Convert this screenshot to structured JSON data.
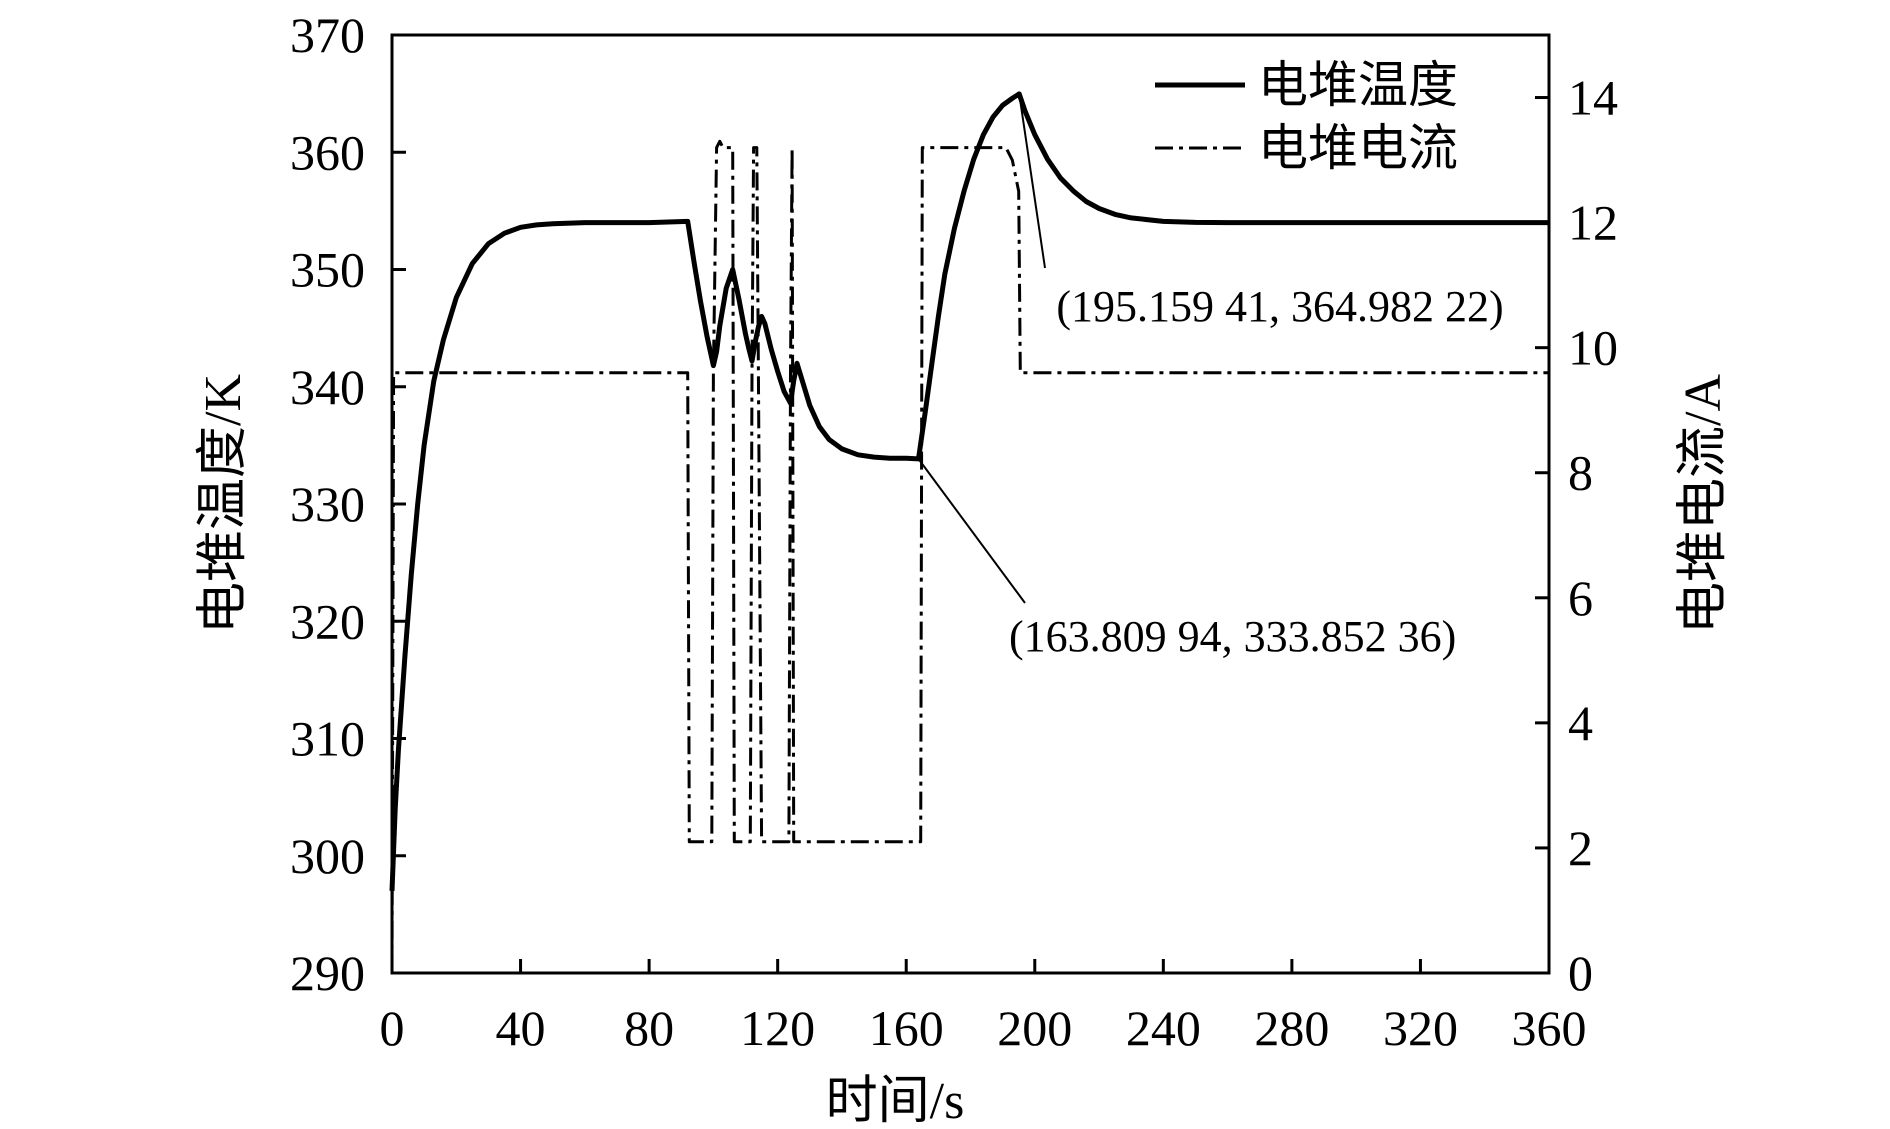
{
  "chart_data": {
    "type": "line",
    "title": "",
    "xlabel": "时间/s",
    "ylabel": "电堆温度/K",
    "y2label": "电堆电流/A",
    "xlim": [
      0,
      360
    ],
    "ylim": [
      290,
      370
    ],
    "y2lim": [
      0,
      15
    ],
    "xticks": [
      0,
      40,
      80,
      120,
      160,
      200,
      240,
      280,
      320,
      360
    ],
    "yticks": [
      290,
      300,
      310,
      320,
      330,
      340,
      350,
      360,
      370
    ],
    "y2ticks": [
      0,
      2,
      4,
      6,
      8,
      10,
      12,
      14
    ],
    "grid": false,
    "legend_position": "top-right",
    "series": [
      {
        "name": "电堆温度",
        "axis": "left",
        "style": "solid",
        "color": "#000000",
        "x": [
          0,
          1,
          2,
          4,
          6,
          8,
          10,
          13,
          16,
          20,
          25,
          30,
          35,
          40,
          45,
          50,
          60,
          70,
          80,
          92,
          94,
          96,
          98,
          100,
          101,
          102,
          104,
          106,
          108,
          110,
          111,
          112,
          113,
          114,
          115,
          116,
          118,
          120,
          122,
          124,
          125,
          126,
          128,
          130,
          133,
          136,
          140,
          145,
          150,
          155,
          160,
          163.81,
          166,
          168,
          170,
          172,
          175,
          178,
          181,
          184,
          187,
          190,
          193,
          195.16,
          197,
          200,
          204,
          208,
          212,
          216,
          220,
          225,
          230,
          240,
          250,
          260,
          280,
          300,
          320,
          340,
          360
        ],
        "y": [
          297,
          304,
          309,
          317,
          324,
          330,
          335,
          340.5,
          344,
          347.6,
          350.5,
          352.2,
          353.1,
          353.6,
          353.8,
          353.9,
          354,
          354,
          354,
          354.1,
          350.6,
          347.3,
          344.3,
          341.8,
          343,
          345.2,
          348.4,
          350,
          347.4,
          344.5,
          343.3,
          342.2,
          343.8,
          345.1,
          346,
          345.4,
          343.2,
          341.3,
          339.6,
          338.6,
          340.5,
          342,
          340.2,
          338.4,
          336.6,
          335.5,
          334.7,
          334.2,
          334,
          333.9,
          333.9,
          333.85,
          338,
          342,
          346,
          349.6,
          353.5,
          356.7,
          359.4,
          361.5,
          363,
          364,
          364.6,
          364.98,
          363.5,
          361.5,
          359.4,
          357.8,
          356.7,
          355.8,
          355.2,
          354.7,
          354.4,
          354.1,
          354.02,
          354,
          354,
          354,
          354,
          354,
          354
        ]
      },
      {
        "name": "电堆电流",
        "axis": "right",
        "style": "dash-dot",
        "color": "#000000",
        "x": [
          0,
          0.5,
          92,
          92.5,
          99.5,
          100,
          101,
          102,
          103,
          104,
          106,
          106.5,
          111.5,
          112,
          112.5,
          113.5,
          114,
          115,
          123.5,
          124,
          124.5,
          125,
          164.5,
          165,
          189,
          191,
          193,
          195,
          195.5,
          360
        ],
        "y": [
          0,
          9.6,
          9.6,
          2.1,
          2.1,
          9.6,
          13.2,
          13.3,
          13.2,
          13.2,
          13.2,
          2.1,
          2.1,
          9.6,
          13.2,
          13.2,
          9.6,
          2.1,
          2.1,
          9.6,
          13.2,
          2.1,
          2.1,
          13.2,
          13.2,
          13.2,
          13,
          12.5,
          9.6,
          9.6
        ]
      }
    ],
    "annotations": [
      {
        "text": "(163.809 94, 333.852 36)",
        "x": 163.81,
        "y": 333.85
      },
      {
        "text": "(195.159 41, 364.982 22)",
        "x": 195.16,
        "y": 364.98
      }
    ]
  }
}
